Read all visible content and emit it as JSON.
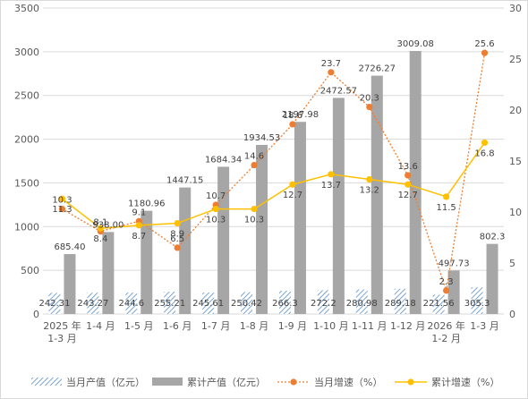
{
  "chart_data": {
    "type": "bar",
    "title": "",
    "xlabel": "",
    "ylabel": "",
    "ylim": [
      0,
      3500
    ],
    "y2lim": [
      0,
      30
    ],
    "yticks": [
      0,
      500,
      1000,
      1500,
      2000,
      2500,
      3000,
      3500
    ],
    "y2ticks": [
      0,
      5,
      10,
      15,
      20,
      25,
      30
    ],
    "grid": true,
    "legend": "bottom",
    "categories": [
      [
        "2025 年",
        "1-3 月"
      ],
      [
        "1-4 月"
      ],
      [
        "1-5 月"
      ],
      [
        "1-6 月"
      ],
      [
        "1-7 月"
      ],
      [
        "1-8 月"
      ],
      [
        "1-9 月"
      ],
      [
        "1-10 月"
      ],
      [
        "1-11 月"
      ],
      [
        "1-12 月"
      ],
      [
        "2026 年",
        "1-2 月"
      ],
      [
        "1-3 月"
      ]
    ],
    "series": [
      {
        "name": "当月产值（亿元）",
        "kind": "bar",
        "axis": "left",
        "color": "#8eb4d9",
        "values": [
          242.31,
          243.27,
          244.6,
          255.21,
          245.61,
          250.42,
          266.3,
          272.2,
          280.98,
          289.18,
          221.56,
          305.3
        ],
        "labels": [
          "242.31",
          "243.27",
          "244.6",
          "255.21",
          "245.61",
          "250.42",
          "266.3",
          "272.2",
          "280.98",
          "289.18",
          "221.56",
          "305.3"
        ]
      },
      {
        "name": "累计产值（亿元）",
        "kind": "bar",
        "axis": "left",
        "color": "#a6a6a6",
        "values": [
          685.4,
          938.0,
          1180.96,
          1447.15,
          1684.34,
          1934.53,
          2197.98,
          2472.57,
          2726.27,
          3009.08,
          497.73,
          802.3
        ],
        "labels": [
          "685.40",
          "938.00",
          "1180.96",
          "1447.15",
          "1684.34",
          "1934.53",
          "2197.98",
          "2472.57",
          "2726.27",
          "3009.08",
          "497.73",
          "802.3"
        ]
      },
      {
        "name": "当月增速（%）",
        "kind": "line",
        "axis": "right",
        "color": "#ed7d31",
        "values": [
          10.3,
          8.1,
          9.1,
          6.5,
          10.7,
          14.6,
          18.6,
          23.7,
          20.3,
          13.6,
          2.3,
          25.6
        ],
        "labels": [
          "10.3",
          "8.1",
          "9.1",
          "6.5",
          "10.7",
          "14.6",
          "18.6",
          "23.7",
          "20.3",
          "13.6",
          "2.3",
          "25.6"
        ]
      },
      {
        "name": "累计增速（%）",
        "kind": "line",
        "axis": "right",
        "color": "#ffc000",
        "values": [
          11.3,
          8.4,
          8.7,
          8.9,
          10.3,
          10.3,
          12.7,
          13.7,
          13.2,
          12.7,
          11.5,
          16.8
        ],
        "labels": [
          "11.3",
          "8.4",
          "8.7",
          "8.9",
          "10.3",
          "10.3",
          "12.7",
          "13.7",
          "13.2",
          "12.7",
          "11.5",
          "16.8"
        ]
      }
    ]
  }
}
